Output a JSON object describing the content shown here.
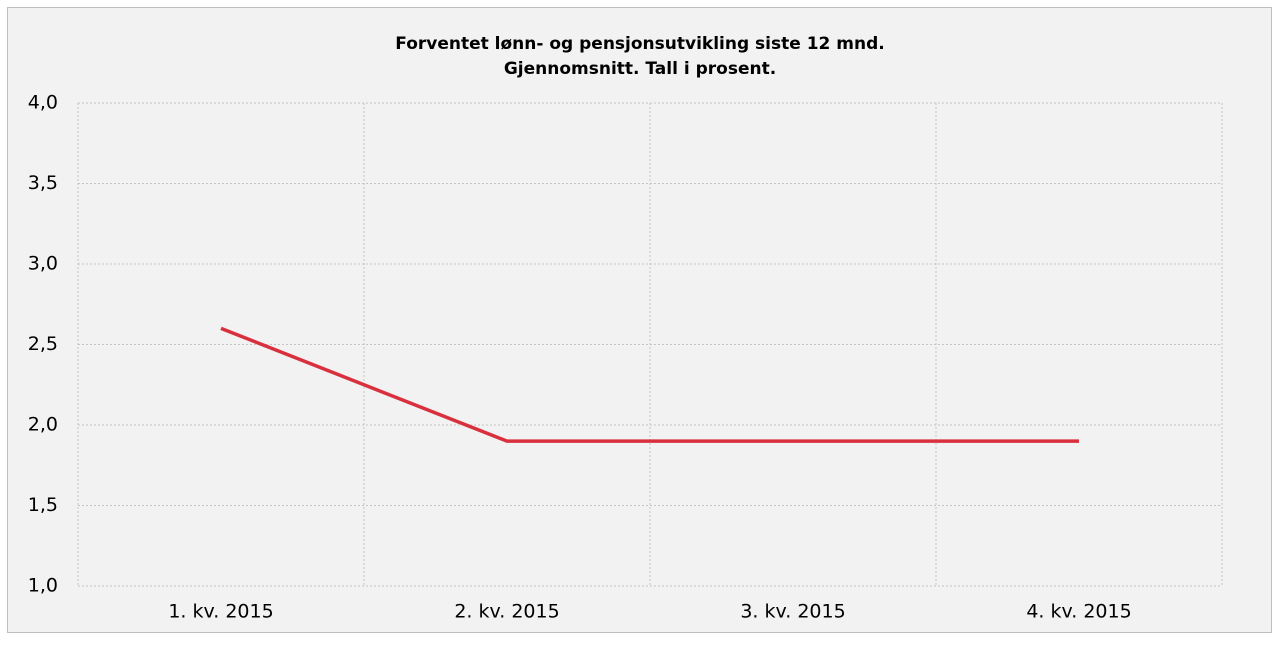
{
  "chart_data": {
    "type": "line",
    "title": "Forventet lønn- og pensjonsutvikling siste 12 mnd.",
    "subtitle": "Gjennomsnitt. Tall i prosent.",
    "categories": [
      "1. kv. 2015",
      "2. kv. 2015",
      "3. kv. 2015",
      "4. kv. 2015"
    ],
    "series": [
      {
        "name": "Forventet lønn- og pensjonsutvikling",
        "color": "#d9303e",
        "values": [
          2.6,
          1.9,
          1.9,
          1.9
        ]
      }
    ],
    "ylim": [
      1,
      4
    ],
    "yticks": [
      {
        "value": 1,
        "label": "1,0"
      },
      {
        "value": 1.5,
        "label": "1,5"
      },
      {
        "value": 2,
        "label": "2,0"
      },
      {
        "value": 2.5,
        "label": "2,5"
      },
      {
        "value": 3,
        "label": "3,0"
      },
      {
        "value": 3.5,
        "label": "3,5"
      },
      {
        "value": 4,
        "label": "4,0"
      }
    ],
    "grid": true
  }
}
